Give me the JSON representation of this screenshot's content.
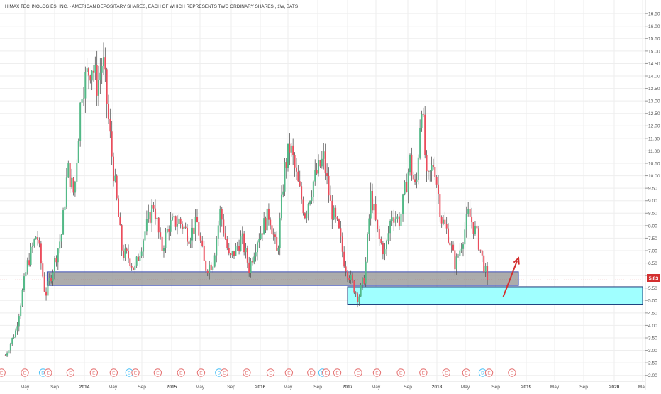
{
  "title": "HIMAX TECHNOLOGIES, INC. - AMERICAN DEPOSITARY SHARES, EACH OF WHICH REPRESENTS TWO ORDINARY SHARES., 1W, BATS",
  "colors": {
    "up": "#53b987",
    "down": "#eb4d5c",
    "wick": "#555555",
    "grid": "#eeeeee",
    "axis_text": "#555555",
    "gray_zone": "#909090",
    "cyan_zone": "#a0ffff",
    "arrow": "#d32f2f",
    "price_tag": "#d32f2f",
    "event_earnings": "#e57373",
    "event_dividend": "#4fc3f7"
  },
  "price_tag": "5.83",
  "chart_data": {
    "type": "candlestick",
    "title": "HIMAX TECHNOLOGIES, INC. - AMERICAN DEPOSITARY SHARES, EACH OF WHICH REPRESENTS TWO ORDINARY SHARES., 1W, BATS",
    "x_ticks": [
      "May",
      "Sep",
      "2014",
      "May",
      "Sep",
      "2015",
      "May",
      "Sep",
      "2016",
      "May",
      "Sep",
      "2017",
      "May",
      "Sep",
      "2018",
      "May",
      "Sep",
      "2019",
      "May",
      "Sep",
      "2020",
      "May"
    ],
    "y_ticks": [
      "2.00",
      "2.50",
      "3.00",
      "3.50",
      "4.00",
      "4.50",
      "5.00",
      "5.50",
      "6.00",
      "6.50",
      "7.00",
      "7.50",
      "8.00",
      "8.50",
      "9.00",
      "9.50",
      "10.00",
      "10.50",
      "11.00",
      "11.50",
      "12.00",
      "12.50",
      "13.00",
      "13.50",
      "14.00",
      "14.50",
      "15.00",
      "15.50",
      "16.00",
      "16.50"
    ],
    "ylim": [
      2.0,
      16.6
    ],
    "last_price": 5.83,
    "zones": [
      {
        "name": "gray-support-zone",
        "x_start": "2013-08",
        "x_end": "2018-12",
        "y_low": 5.6,
        "y_high": 6.15
      },
      {
        "name": "cyan-demand-zone",
        "x_start": "2017-01",
        "x_end": "2020-05",
        "y_low": 4.85,
        "y_high": 5.55
      }
    ],
    "arrow": {
      "from": [
        "2018-10",
        5.15
      ],
      "to": [
        "2018-12",
        6.7
      ]
    },
    "anchors": [
      [
        "2013-02-10",
        2.8
      ],
      [
        "2013-03-25",
        3.8
      ],
      [
        "2013-05-10",
        6.4
      ],
      [
        "2013-06-20",
        7.7
      ],
      [
        "2013-07-25",
        5.2
      ],
      [
        "2013-08-20",
        6.1
      ],
      [
        "2013-09-30",
        7.7
      ],
      [
        "2013-10-25",
        10.3
      ],
      [
        "2013-11-20",
        9.2
      ],
      [
        "2013-12-20",
        13.5
      ],
      [
        "2014-02-01",
        14.5
      ],
      [
        "2014-02-25",
        13.6
      ],
      [
        "2014-03-20",
        14.7
      ],
      [
        "2014-04-25",
        11.0
      ],
      [
        "2014-06-10",
        6.9
      ],
      [
        "2014-07-10",
        6.7
      ],
      [
        "2014-08-01",
        6.2
      ],
      [
        "2014-09-15",
        7.8
      ],
      [
        "2014-10-20",
        8.9
      ],
      [
        "2014-11-20",
        7.0
      ],
      [
        "2014-12-20",
        8.0
      ],
      [
        "2015-02-01",
        8.2
      ],
      [
        "2015-03-15",
        7.6
      ],
      [
        "2015-04-20",
        8.1
      ],
      [
        "2015-05-20",
        6.3
      ],
      [
        "2015-06-20",
        6.5
      ],
      [
        "2015-07-20",
        8.6
      ],
      [
        "2015-08-25",
        6.6
      ],
      [
        "2015-10-15",
        7.5
      ],
      [
        "2015-11-15",
        6.3
      ],
      [
        "2015-12-20",
        7.5
      ],
      [
        "2016-02-10",
        8.5
      ],
      [
        "2016-03-15",
        6.8
      ],
      [
        "2016-04-15",
        10.2
      ],
      [
        "2016-05-10",
        11.2
      ],
      [
        "2016-06-10",
        9.7
      ],
      [
        "2016-07-10",
        8.5
      ],
      [
        "2016-08-15",
        9.8
      ],
      [
        "2016-09-25",
        10.7
      ],
      [
        "2016-10-25",
        8.7
      ],
      [
        "2016-11-25",
        7.8
      ],
      [
        "2016-12-20",
        6.5
      ],
      [
        "2017-01-20",
        5.7
      ],
      [
        "2017-02-15",
        5.1
      ],
      [
        "2017-03-15",
        6.0
      ],
      [
        "2017-04-10",
        9.3
      ],
      [
        "2017-05-10",
        7.5
      ],
      [
        "2017-06-05",
        6.9
      ],
      [
        "2017-07-01",
        8.5
      ],
      [
        "2017-08-01",
        8.2
      ],
      [
        "2017-09-10",
        10.6
      ],
      [
        "2017-10-05",
        9.3
      ],
      [
        "2017-10-28",
        13.2
      ],
      [
        "2017-11-20",
        9.6
      ],
      [
        "2017-12-20",
        10.6
      ],
      [
        "2018-01-20",
        8.3
      ],
      [
        "2018-02-20",
        7.6
      ],
      [
        "2018-03-20",
        6.4
      ],
      [
        "2018-04-15",
        7.3
      ],
      [
        "2018-05-15",
        8.5
      ],
      [
        "2018-06-20",
        7.5
      ],
      [
        "2018-07-10",
        6.6
      ],
      [
        "2018-07-30",
        5.83
      ]
    ],
    "events": [
      {
        "type": "E",
        "x": "2013-01-25"
      },
      {
        "type": "E",
        "x": "2013-05-01"
      },
      {
        "type": "D",
        "x": "2013-07-15"
      },
      {
        "type": "E",
        "x": "2013-08-05"
      },
      {
        "type": "E",
        "x": "2013-11-05"
      },
      {
        "type": "E",
        "x": "2014-02-10"
      },
      {
        "type": "E",
        "x": "2014-05-05"
      },
      {
        "type": "D",
        "x": "2014-07-10"
      },
      {
        "type": "E",
        "x": "2014-08-05"
      },
      {
        "type": "E",
        "x": "2014-11-05"
      },
      {
        "type": "E",
        "x": "2015-02-10"
      },
      {
        "type": "E",
        "x": "2015-05-05"
      },
      {
        "type": "D",
        "x": "2015-07-15"
      },
      {
        "type": "E",
        "x": "2015-08-05"
      },
      {
        "type": "E",
        "x": "2015-11-05"
      },
      {
        "type": "E",
        "x": "2016-02-15"
      },
      {
        "type": "E",
        "x": "2016-05-05"
      },
      {
        "type": "E",
        "x": "2016-08-05"
      },
      {
        "type": "D",
        "x": "2016-09-20"
      },
      {
        "type": "E",
        "x": "2016-10-05"
      },
      {
        "type": "E",
        "x": "2016-11-20"
      },
      {
        "type": "E",
        "x": "2017-02-15"
      },
      {
        "type": "E",
        "x": "2017-05-05"
      },
      {
        "type": "E",
        "x": "2017-08-05"
      },
      {
        "type": "E",
        "x": "2017-11-05"
      },
      {
        "type": "E",
        "x": "2018-02-10"
      },
      {
        "type": "E",
        "x": "2018-05-05"
      },
      {
        "type": "D",
        "x": "2018-07-10"
      },
      {
        "type": "E",
        "x": "2018-08-05"
      },
      {
        "type": "E",
        "x": "2018-11-05"
      }
    ]
  }
}
